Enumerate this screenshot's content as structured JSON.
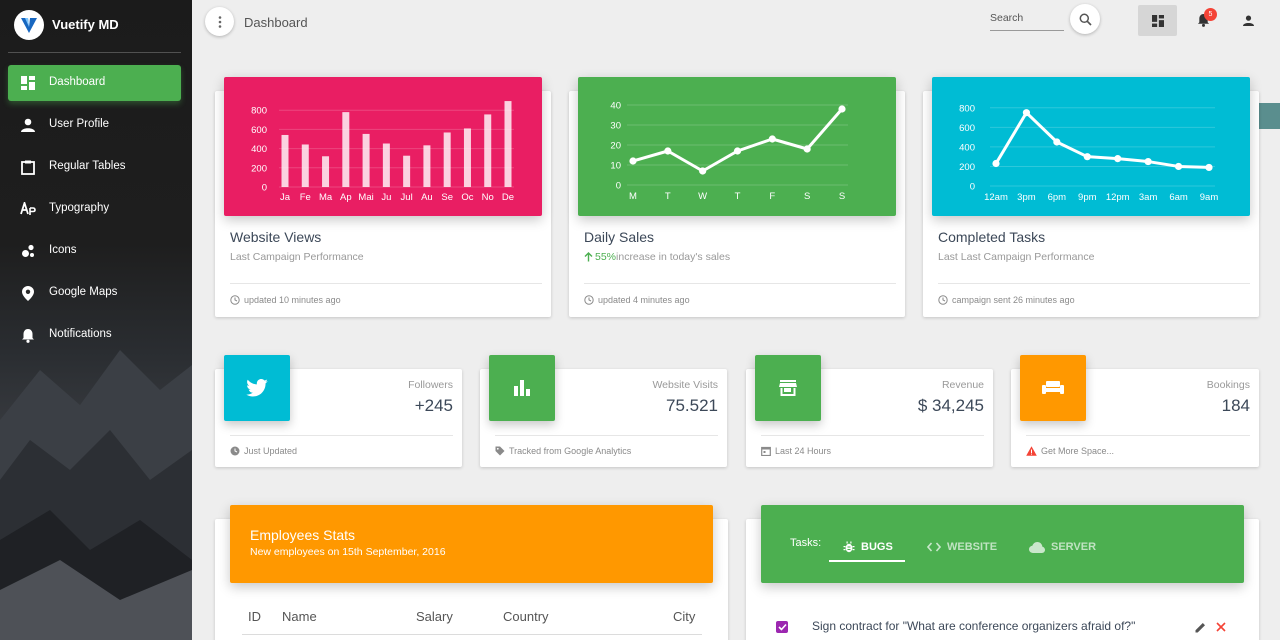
{
  "brand": {
    "name": "Vuetify MD"
  },
  "sidebar": {
    "items": [
      {
        "label": "Dashboard",
        "icon": "dashboard-icon",
        "active": true
      },
      {
        "label": "User Profile",
        "icon": "person-icon"
      },
      {
        "label": "Regular Tables",
        "icon": "clipboard-icon"
      },
      {
        "label": "Typography",
        "icon": "typography-icon"
      },
      {
        "label": "Icons",
        "icon": "bubble-chart-icon"
      },
      {
        "label": "Google Maps",
        "icon": "map-pin-icon"
      },
      {
        "label": "Notifications",
        "icon": "bell-icon"
      }
    ]
  },
  "toolbar": {
    "title": "Dashboard",
    "search_placeholder": "Search",
    "notification_count": "5"
  },
  "charts": [
    {
      "title": "Website Views",
      "subtitle": "Last Campaign Performance",
      "footer": "updated 10 minutes ago",
      "color": "#e91e63",
      "chart_data": {
        "type": "bar",
        "categories": [
          "Ja",
          "Fe",
          "Ma",
          "Ap",
          "Mai",
          "Ju",
          "Jul",
          "Au",
          "Se",
          "Oc",
          "No",
          "De"
        ],
        "values": [
          542,
          443,
          320,
          780,
          553,
          453,
          326,
          434,
          568,
          610,
          756,
          895
        ],
        "y_ticks": [
          "800",
          "600",
          "400",
          "200",
          "0"
        ],
        "ylim": [
          0,
          1000
        ]
      }
    },
    {
      "title": "Daily Sales",
      "highlight": "55%",
      "subtitle_rest": "increase in today's sales",
      "footer": "updated 4 minutes ago",
      "color": "#4caf50",
      "chart_data": {
        "type": "line",
        "categories": [
          "M",
          "T",
          "W",
          "T",
          "F",
          "S",
          "S"
        ],
        "values": [
          12,
          17,
          7,
          17,
          23,
          18,
          38
        ],
        "y_ticks": [
          "40",
          "30",
          "20",
          "10",
          "0"
        ],
        "ylim": [
          0,
          42
        ]
      }
    },
    {
      "title": "Completed Tasks",
      "subtitle": "Last Last Campaign Performance",
      "footer": "campaign sent 26 minutes ago",
      "color": "#00bcd4",
      "chart_data": {
        "type": "line",
        "categories": [
          "12am",
          "3pm",
          "6pm",
          "9pm",
          "12pm",
          "3am",
          "6am",
          "9am"
        ],
        "values": [
          230,
          750,
          450,
          300,
          280,
          250,
          200,
          190
        ],
        "y_ticks": [
          "800",
          "600",
          "400",
          "200",
          "0"
        ],
        "ylim": [
          0,
          900
        ]
      }
    }
  ],
  "stats": [
    {
      "category": "Followers",
      "value": "+245",
      "footer": "Just Updated",
      "color": "#00bcd4",
      "icon": "twitter-icon",
      "footer_icon": "clock-icon"
    },
    {
      "category": "Website Visits",
      "value": "75.521",
      "footer": "Tracked from Google Analytics",
      "color": "#4caf50",
      "icon": "bar-chart-icon",
      "footer_icon": "tag-icon"
    },
    {
      "category": "Revenue",
      "value": "$ 34,245",
      "footer": "Last 24 Hours",
      "color": "#4caf50",
      "icon": "store-icon",
      "footer_icon": "calendar-icon"
    },
    {
      "category": "Bookings",
      "value": "184",
      "footer": "Get More Space...",
      "color": "#ff9800",
      "icon": "sofa-icon",
      "footer_icon": "warning-icon"
    }
  ],
  "employees": {
    "title": "Employees Stats",
    "subtitle": "New employees on 15th September, 2016",
    "columns": [
      "ID",
      "Name",
      "Salary",
      "Country",
      "City"
    ]
  },
  "tasks": {
    "label": "Tasks:",
    "tabs": [
      {
        "label": "BUGS",
        "icon": "bug-icon",
        "active": true
      },
      {
        "label": "WEBSITE",
        "icon": "code-icon"
      },
      {
        "label": "SERVER",
        "icon": "cloud-icon"
      }
    ],
    "rows": [
      {
        "text": "Sign contract for \"What are conference organizers afraid of?\"",
        "checked": true
      }
    ]
  }
}
